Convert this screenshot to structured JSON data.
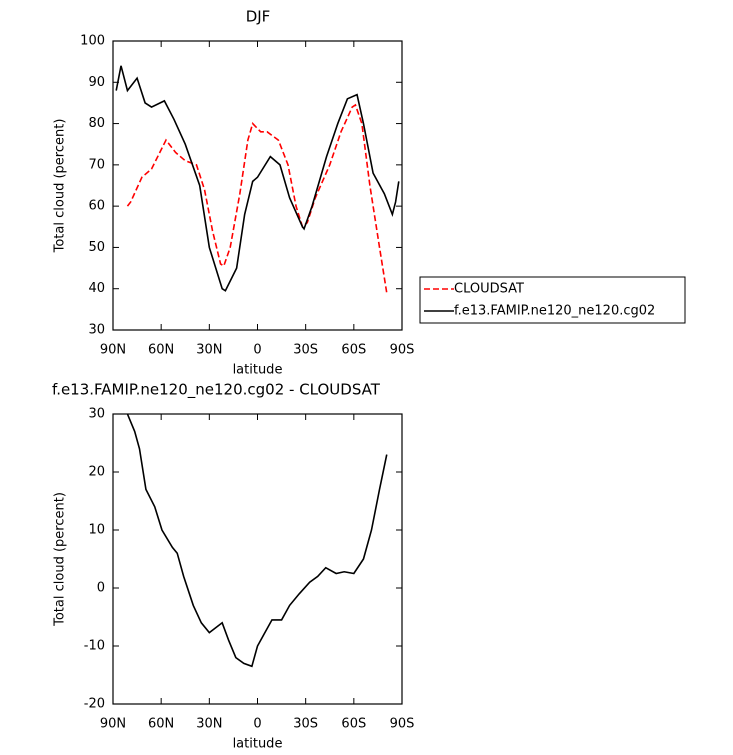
{
  "chart_data": [
    {
      "type": "line",
      "title": "DJF",
      "xlabel": "latitude",
      "ylabel": "Total cloud (percent)",
      "xlim": [
        90,
        -90
      ],
      "ylim": [
        30,
        100
      ],
      "xticks": [
        {
          "value": 90,
          "label": "90N"
        },
        {
          "value": 60,
          "label": "60N"
        },
        {
          "value": 30,
          "label": "30N"
        },
        0,
        {
          "value": -30,
          "label": "30S"
        },
        {
          "value": -60,
          "label": "60S"
        },
        {
          "value": -90,
          "label": "90S"
        }
      ],
      "yticks": [
        30,
        40,
        50,
        60,
        70,
        80,
        90,
        100
      ],
      "legend": "right",
      "series": [
        {
          "name": "CLOUDSAT",
          "color": "#ff0000",
          "linestyle": "dashed",
          "x": [
            81,
            79,
            72,
            66,
            57,
            51,
            45,
            38,
            33,
            28,
            23,
            21,
            17,
            11,
            6,
            3,
            -2,
            -6,
            -13,
            -19,
            -24,
            -28,
            -31,
            -36,
            -45,
            -52,
            -59,
            -61,
            -65,
            -70,
            -76,
            -80.5
          ],
          "values": [
            60,
            61,
            67,
            69,
            76,
            73,
            71,
            70,
            64,
            54,
            46,
            45.5,
            50,
            63,
            76,
            80,
            78,
            78,
            76,
            70,
            60,
            55,
            56,
            62,
            70,
            78,
            84,
            84.5,
            80,
            65,
            50,
            39
          ]
        },
        {
          "name": "f.e13.FAMIP.ne120_ne120.cg02",
          "color": "#000000",
          "linestyle": "solid",
          "x": [
            88,
            85,
            81,
            75,
            70,
            66,
            58,
            52,
            45,
            36,
            30,
            22,
            20,
            13,
            8,
            3,
            0,
            -8,
            -14,
            -20,
            -28,
            -29,
            -34,
            -43,
            -50,
            -56,
            -62,
            -66,
            -72,
            -79,
            -84,
            -86,
            -88
          ],
          "values": [
            88,
            94,
            88,
            91,
            85,
            84,
            85.5,
            81,
            75,
            65,
            50,
            40,
            39.5,
            45,
            58,
            66,
            67,
            72,
            70,
            62,
            55,
            54.5,
            60,
            72,
            80,
            86,
            87,
            80,
            68,
            63,
            58,
            61,
            66
          ]
        }
      ]
    },
    {
      "type": "line",
      "title": "f.e13.FAMIP.ne120_ne120.cg02 - CLOUDSAT",
      "xlabel": "latitude",
      "ylabel": "Total cloud (percent)",
      "xlim": [
        90,
        -90
      ],
      "ylim": [
        -20,
        30
      ],
      "xticks": [
        {
          "value": 90,
          "label": "90N"
        },
        {
          "value": 60,
          "label": "60N"
        },
        {
          "value": 30,
          "label": "30N"
        },
        0,
        {
          "value": -30,
          "label": "30S"
        },
        {
          "value": -60,
          "label": "60S"
        },
        {
          "value": -90,
          "label": "90S"
        }
      ],
      "yticks": [
        -20,
        -10,
        0,
        10,
        20,
        30
      ],
      "series": [
        {
          "color": "#000000",
          "linestyle": "solid",
          "x": [
            81,
            76.5,
            73.5,
            69.5,
            64,
            59.5,
            53,
            50,
            46,
            40,
            35,
            30,
            22,
            18,
            13.5,
            8.5,
            3.5,
            0,
            -4,
            -9,
            -15,
            -20,
            -26,
            -32.5,
            -37.5,
            -42.5,
            -49,
            -54,
            -60,
            -66,
            -71,
            -76,
            -80.5
          ],
          "values": [
            30,
            27,
            24,
            17,
            14,
            10,
            7,
            6,
            2,
            -3,
            -6,
            -7.7,
            -6,
            -9,
            -12,
            -13,
            -13.5,
            -10,
            -8,
            -5.5,
            -5.5,
            -3,
            -1,
            1,
            2,
            3.5,
            2.5,
            2.8,
            2.5,
            5,
            10,
            17,
            23
          ]
        }
      ]
    }
  ]
}
